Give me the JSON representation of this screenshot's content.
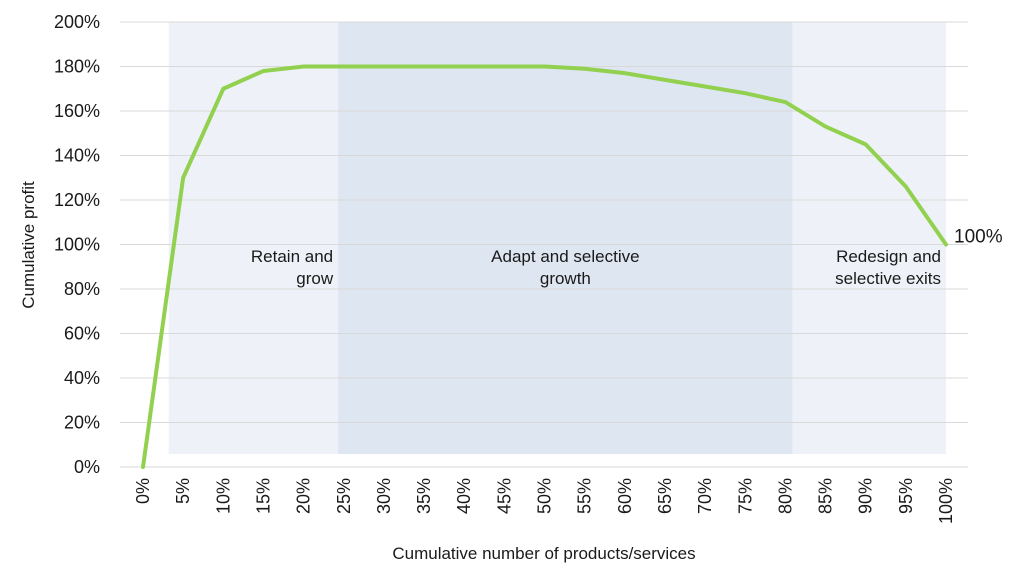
{
  "chart_data": {
    "type": "line",
    "title": "",
    "xlabel": "Cumulative number of products/services",
    "ylabel": "Cumulative profit",
    "x": [
      0,
      5,
      10,
      15,
      20,
      25,
      30,
      35,
      40,
      45,
      50,
      55,
      60,
      65,
      70,
      75,
      80,
      85,
      90,
      95,
      100
    ],
    "x_tick_labels": [
      "0%",
      "5%",
      "10%",
      "15%",
      "20%",
      "25%",
      "30%",
      "35%",
      "40%",
      "45%",
      "50%",
      "55%",
      "60%",
      "65%",
      "70%",
      "75%",
      "80%",
      "85%",
      "90%",
      "95%",
      "100%"
    ],
    "ylim": [
      0,
      200
    ],
    "y_ticks": [
      0,
      20,
      40,
      60,
      80,
      100,
      120,
      140,
      160,
      180,
      200
    ],
    "y_tick_labels": [
      "0%",
      "20%",
      "40%",
      "60%",
      "80%",
      "100%",
      "120%",
      "140%",
      "160%",
      "180%",
      "200%"
    ],
    "grid": true,
    "series": [
      {
        "name": "Cumulative profit",
        "color": "#92d050",
        "values": [
          0,
          130,
          170,
          178,
          180,
          180,
          180,
          180,
          180,
          180,
          180,
          179,
          177,
          174,
          171,
          168,
          164,
          153,
          145,
          126,
          100
        ]
      }
    ],
    "end_label": "100%",
    "zones": [
      {
        "label_lines": [
          "Retain and",
          "grow"
        ],
        "x_start": 3.2,
        "x_end": 24.3,
        "color": "#eef2f8"
      },
      {
        "label_lines": [
          "Adapt and selective",
          "growth"
        ],
        "x_start": 24.3,
        "x_end": 80.9,
        "color": "#dee6f1"
      },
      {
        "label_lines": [
          "Redesign and",
          "selective exits"
        ],
        "x_start": 80.9,
        "x_end": 100,
        "color": "#eef2f8"
      }
    ]
  }
}
